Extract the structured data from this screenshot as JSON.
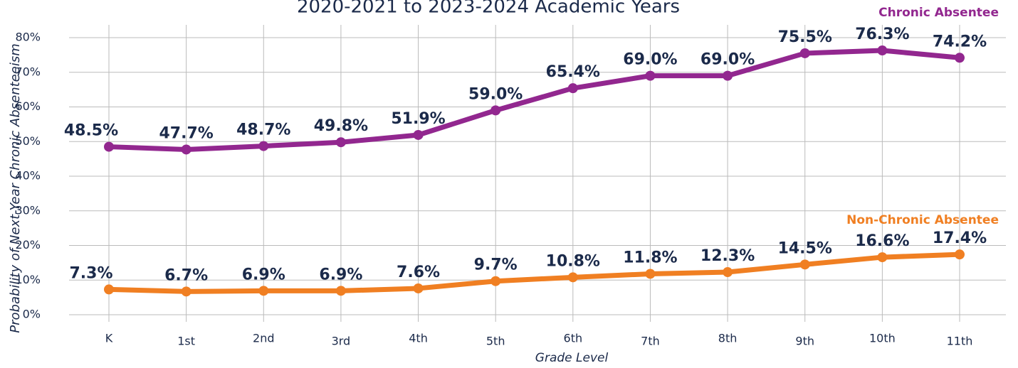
{
  "chart_data": {
    "type": "line",
    "title": "2020-2021 to 2023-2024 Academic Years",
    "x_label": "Grade Level",
    "y_label": "Probability of Next-Year Chronic Absenteeism",
    "categories": [
      "K",
      "1st",
      "2nd",
      "3rd",
      "4th",
      "5th",
      "6th",
      "7th",
      "8th",
      "9th",
      "10th",
      "11th"
    ],
    "series": [
      {
        "name": "Chronic Absentee",
        "color": "#92278f",
        "values": [
          48.5,
          47.7,
          48.7,
          49.8,
          51.9,
          59.0,
          65.4,
          69.0,
          69.0,
          75.5,
          76.3,
          74.2
        ],
        "value_labels": [
          "48.5%",
          "47.7%",
          "48.7%",
          "49.8%",
          "51.9%",
          "59.0%",
          "65.4%",
          "69.0%",
          "69.0%",
          "75.5%",
          "76.3%",
          "74.2%"
        ]
      },
      {
        "name": "Non-Chronic Absentee",
        "color": "#f07f22",
        "values": [
          7.3,
          6.7,
          6.9,
          6.9,
          7.6,
          9.7,
          10.8,
          11.8,
          12.3,
          14.5,
          16.6,
          17.4
        ],
        "value_labels": [
          "7.3%",
          "6.7%",
          "6.9%",
          "6.9%",
          "7.6%",
          "9.7%",
          "10.8%",
          "11.8%",
          "12.3%",
          "14.5%",
          "16.6%",
          "17.4%"
        ]
      }
    ],
    "ylim": [
      0,
      80
    ],
    "yticks": [
      {
        "value": 0,
        "label": "0%"
      },
      {
        "value": 10,
        "label": "10%"
      },
      {
        "value": 20,
        "label": "20%"
      },
      {
        "value": 30,
        "label": "30%"
      },
      {
        "value": 40,
        "label": "40%"
      },
      {
        "value": 50,
        "label": "50%"
      },
      {
        "value": 60,
        "label": "60%"
      },
      {
        "value": 70,
        "label": "70%"
      },
      {
        "value": 80,
        "label": "80%"
      }
    ],
    "grid": true
  }
}
